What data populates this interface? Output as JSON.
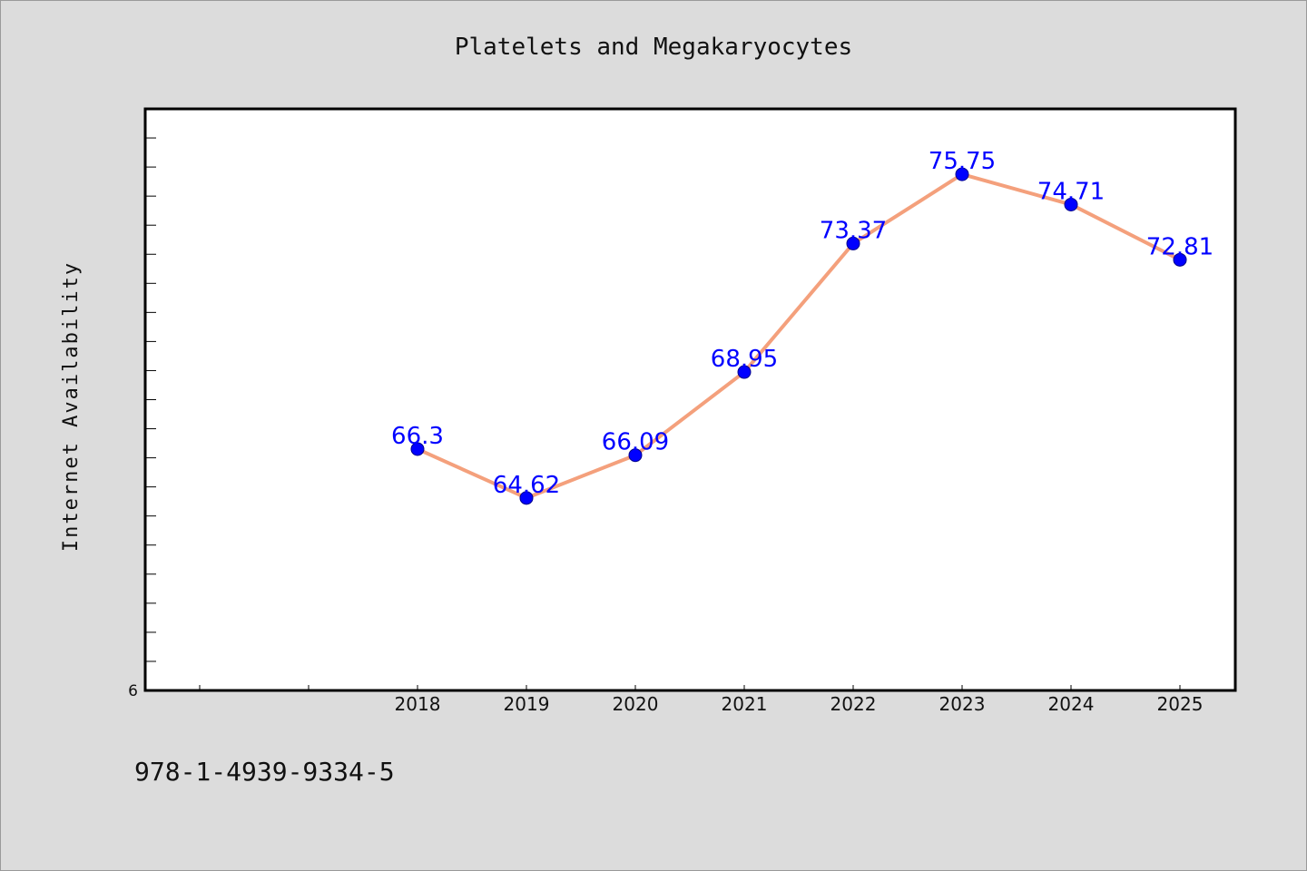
{
  "chart_data": {
    "type": "line",
    "title": "Platelets and Megakaryocytes",
    "xlabel": "",
    "ylabel": "Internet Availability",
    "categories": [
      "2018",
      "2019",
      "2020",
      "2021",
      "2022",
      "2023",
      "2024",
      "2025"
    ],
    "values": [
      66.3,
      64.62,
      66.09,
      68.95,
      73.37,
      75.75,
      74.71,
      72.81
    ],
    "data_labels": [
      "66.3",
      "64.62",
      "66.09",
      "68.95",
      "73.37",
      "75.75",
      "74.71",
      "72.81"
    ],
    "y_tick_labels": [
      "6"
    ],
    "ylim": [
      58,
      78
    ],
    "grid": false,
    "legend": "none",
    "line_color": "#f4a07c",
    "marker_color": "#0000ff",
    "label_color": "#0000ff"
  },
  "footer_text": "978-1-4939-9334-5"
}
